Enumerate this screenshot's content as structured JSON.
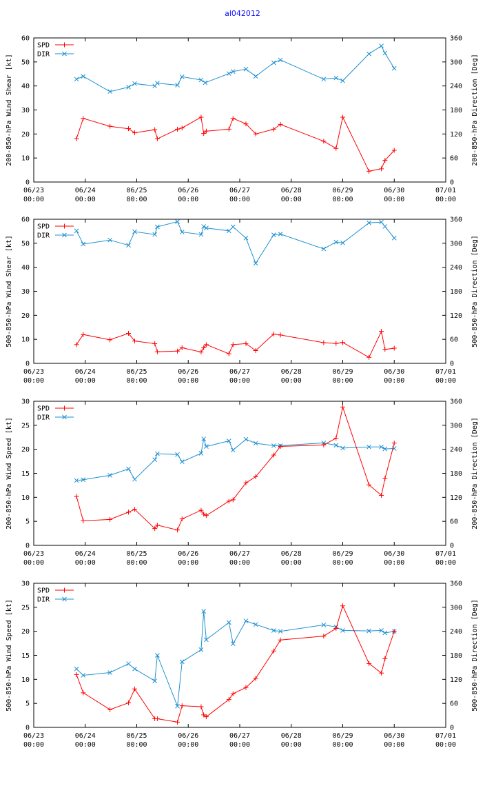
{
  "title": "al042012",
  "colors": {
    "spd": "#ff0000",
    "dir": "#1e90d0",
    "title": "#1010ff"
  },
  "chart_data": [
    {
      "type": "line",
      "ylabel_left": "200-850-hPa Wind Shear [kt]",
      "ylabel_right": "200-850-hPa Direction [Deg]",
      "ylim_left": [
        0,
        60
      ],
      "yticks_left": [
        "0",
        "10",
        "20",
        "30",
        "40",
        "50",
        "60"
      ],
      "ylim_right": [
        0,
        360
      ],
      "yticks_right": [
        "0",
        "60",
        "120",
        "180",
        "240",
        "300",
        "360"
      ],
      "xlim": [
        0,
        8
      ],
      "xticks": [
        [
          "06/23",
          "00:00"
        ],
        [
          "06/24",
          "00:00"
        ],
        [
          "06/25",
          "00:00"
        ],
        [
          "06/26",
          "00:00"
        ],
        [
          "06/27",
          "00:00"
        ],
        [
          "06/28",
          "00:00"
        ],
        [
          "06/29",
          "00:00"
        ],
        [
          "06/30",
          "00:00"
        ],
        [
          "07/01",
          "00:00"
        ]
      ],
      "legend": [
        "SPD",
        "DIR"
      ],
      "spd": {
        "x": [
          0.83,
          0.96,
          1.48,
          1.84,
          1.96,
          2.35,
          2.4,
          2.79,
          2.88,
          3.25,
          3.3,
          3.35,
          3.79,
          3.87,
          4.12,
          4.31,
          4.66,
          4.79,
          5.63,
          5.87,
          6.0,
          6.51,
          6.75,
          6.82,
          7.0
        ],
        "y": [
          18,
          26.5,
          23.2,
          22.2,
          20.5,
          21.8,
          18,
          22,
          22.5,
          27,
          20.2,
          21.2,
          22,
          26.5,
          24.2,
          20,
          22,
          24,
          17,
          14,
          27,
          4.5,
          5.5,
          9,
          13.2
        ]
      },
      "dir": {
        "x": [
          0.83,
          0.96,
          1.48,
          1.84,
          1.96,
          2.35,
          2.4,
          2.79,
          2.88,
          3.25,
          3.33,
          3.79,
          3.87,
          4.12,
          4.31,
          4.66,
          4.79,
          5.63,
          5.87,
          6.0,
          6.51,
          6.75,
          6.82,
          7.0
        ],
        "y": [
          257,
          264,
          226,
          237,
          246,
          240,
          247,
          242,
          263,
          255,
          248,
          271,
          276,
          282,
          264,
          298,
          305,
          257,
          260,
          253,
          320,
          340,
          322,
          284
        ]
      }
    },
    {
      "type": "line",
      "ylabel_left": "500-850-hPa Wind Shear [kt]",
      "ylabel_right": "500-850-hPa Direction [Deg]",
      "ylim_left": [
        0,
        60
      ],
      "yticks_left": [
        "0",
        "10",
        "20",
        "30",
        "40",
        "50",
        "60"
      ],
      "ylim_right": [
        0,
        360
      ],
      "yticks_right": [
        "0",
        "60",
        "120",
        "180",
        "240",
        "300",
        "360"
      ],
      "xlim": [
        0,
        8
      ],
      "xticks": [
        [
          "06/23",
          "00:00"
        ],
        [
          "06/24",
          "00:00"
        ],
        [
          "06/25",
          "00:00"
        ],
        [
          "06/26",
          "00:00"
        ],
        [
          "06/27",
          "00:00"
        ],
        [
          "06/28",
          "00:00"
        ],
        [
          "06/29",
          "00:00"
        ],
        [
          "06/30",
          "00:00"
        ],
        [
          "07/01",
          "00:00"
        ]
      ],
      "legend": [
        "SPD",
        "DIR"
      ],
      "spd": {
        "x": [
          0.83,
          0.96,
          1.48,
          1.84,
          1.96,
          2.35,
          2.4,
          2.79,
          2.88,
          3.25,
          3.3,
          3.35,
          3.79,
          3.87,
          4.12,
          4.31,
          4.66,
          4.79,
          5.63,
          5.87,
          6.0,
          6.51,
          6.75,
          6.82,
          7.0
        ],
        "y": [
          7.8,
          12,
          9.8,
          12.5,
          9.3,
          8.2,
          4.8,
          5.1,
          6.5,
          4.7,
          6.5,
          7.8,
          4,
          7.8,
          8.2,
          5.3,
          12.2,
          11.8,
          8.6,
          8.3,
          8.7,
          2.5,
          13.3,
          5.8,
          6.3
        ]
      },
      "dir": {
        "x": [
          0.83,
          0.96,
          1.48,
          1.84,
          1.96,
          2.35,
          2.4,
          2.79,
          2.88,
          3.25,
          3.3,
          3.35,
          3.79,
          3.87,
          4.12,
          4.31,
          4.66,
          4.79,
          5.63,
          5.87,
          6.0,
          6.51,
          6.75,
          6.82,
          7.0
        ],
        "y": [
          331,
          298,
          308,
          295,
          329,
          322,
          341,
          354,
          328,
          322,
          342,
          338,
          331,
          341,
          313,
          250,
          321,
          323,
          286,
          303,
          301,
          351,
          353,
          342,
          313
        ]
      }
    },
    {
      "type": "line",
      "ylabel_left": "200-850-hPa Wind Speed [kt]",
      "ylabel_right": "200-850-hPa Direction [Deg]",
      "ylim_left": [
        0,
        30
      ],
      "yticks_left": [
        "0",
        "5",
        "10",
        "15",
        "20",
        "25",
        "30"
      ],
      "ylim_right": [
        0,
        360
      ],
      "yticks_right": [
        "0",
        "60",
        "120",
        "180",
        "240",
        "300",
        "360"
      ],
      "xlim": [
        0,
        8
      ],
      "xticks": [
        [
          "06/23",
          "00:00"
        ],
        [
          "06/24",
          "00:00"
        ],
        [
          "06/25",
          "00:00"
        ],
        [
          "06/26",
          "00:00"
        ],
        [
          "06/27",
          "00:00"
        ],
        [
          "06/28",
          "00:00"
        ],
        [
          "06/29",
          "00:00"
        ],
        [
          "06/30",
          "00:00"
        ],
        [
          "07/01",
          "00:00"
        ]
      ],
      "legend": [
        "SPD",
        "DIR"
      ],
      "spd": {
        "x": [
          0.83,
          0.96,
          1.48,
          1.84,
          1.96,
          2.35,
          2.4,
          2.79,
          2.88,
          3.25,
          3.3,
          3.35,
          3.79,
          3.87,
          4.12,
          4.31,
          4.66,
          4.79,
          5.63,
          5.87,
          6.0,
          6.51,
          6.75,
          6.82,
          7.0
        ],
        "y": [
          10.2,
          5.1,
          5.4,
          6.9,
          7.5,
          3.5,
          4.2,
          3.2,
          5.5,
          7.3,
          6.5,
          6.2,
          9.2,
          9.5,
          13,
          14.3,
          18.8,
          20.6,
          20.9,
          22.3,
          28.8,
          12.6,
          10.4,
          13.9,
          21.3
        ]
      },
      "dir": {
        "x": [
          0.83,
          0.96,
          1.48,
          1.84,
          1.96,
          2.35,
          2.4,
          2.79,
          2.88,
          3.25,
          3.3,
          3.35,
          3.79,
          3.87,
          4.12,
          4.31,
          4.66,
          4.79,
          5.63,
          5.87,
          6.0,
          6.51,
          6.75,
          6.82,
          7.0
        ],
        "y": [
          162,
          164,
          175,
          191,
          165,
          214,
          229,
          227,
          209,
          230,
          266,
          247,
          261,
          238,
          265,
          255,
          249,
          249,
          256,
          250,
          243,
          246,
          246,
          241,
          242
        ]
      }
    },
    {
      "type": "line",
      "ylabel_left": "500-850-hPa Wind Speed [kt]",
      "ylabel_right": "500-850-hPa Direction [Deg]",
      "ylim_left": [
        0,
        30
      ],
      "yticks_left": [
        "0",
        "5",
        "10",
        "15",
        "20",
        "25",
        "30"
      ],
      "ylim_right": [
        0,
        360
      ],
      "yticks_right": [
        "0",
        "60",
        "120",
        "180",
        "240",
        "300",
        "360"
      ],
      "xlim": [
        0,
        8
      ],
      "xticks": [
        [
          "06/23",
          "00:00"
        ],
        [
          "06/24",
          "00:00"
        ],
        [
          "06/25",
          "00:00"
        ],
        [
          "06/26",
          "00:00"
        ],
        [
          "06/27",
          "00:00"
        ],
        [
          "06/28",
          "00:00"
        ],
        [
          "06/29",
          "00:00"
        ],
        [
          "06/30",
          "00:00"
        ],
        [
          "07/01",
          "00:00"
        ]
      ],
      "legend": [
        "SPD",
        "DIR"
      ],
      "spd": {
        "x": [
          0.83,
          0.96,
          1.48,
          1.84,
          1.96,
          2.35,
          2.4,
          2.79,
          2.88,
          3.25,
          3.3,
          3.35,
          3.79,
          3.87,
          4.12,
          4.31,
          4.66,
          4.79,
          5.63,
          5.87,
          6.0,
          6.51,
          6.75,
          6.82,
          7.0
        ],
        "y": [
          11,
          7.2,
          3.7,
          5.1,
          8,
          1.8,
          1.8,
          1.1,
          4.5,
          4.3,
          2.6,
          2.2,
          5.8,
          7,
          8.3,
          10.2,
          15.9,
          18.2,
          19,
          20.6,
          25.3,
          13.3,
          11.3,
          14.3,
          20
        ]
      },
      "dir": {
        "x": [
          0.83,
          0.96,
          1.48,
          1.84,
          1.96,
          2.35,
          2.4,
          2.79,
          2.88,
          3.25,
          3.3,
          3.35,
          3.79,
          3.87,
          4.12,
          4.31,
          4.66,
          4.79,
          5.63,
          5.87,
          6.0,
          6.51,
          6.75,
          6.82,
          7.0
        ],
        "y": [
          146,
          130,
          137,
          159,
          146,
          116,
          180,
          53,
          164,
          194,
          290,
          219,
          262,
          209,
          266,
          257,
          242,
          240,
          256,
          251,
          242,
          241,
          242,
          236,
          240
        ]
      }
    }
  ]
}
